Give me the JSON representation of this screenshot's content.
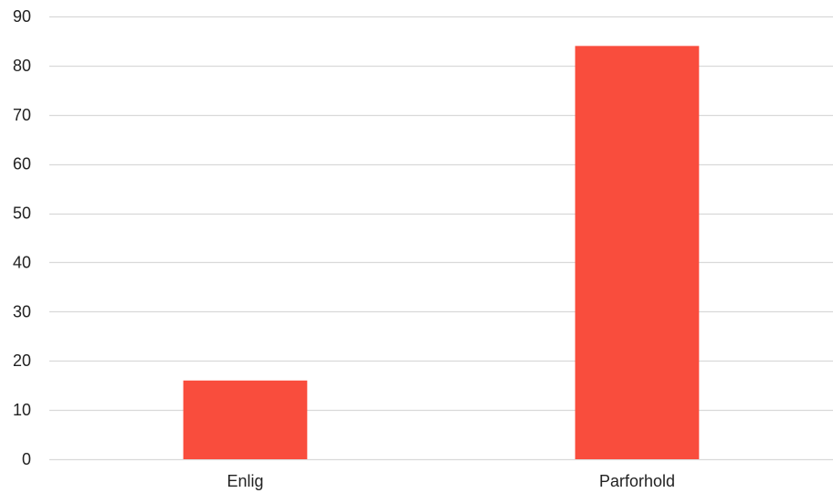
{
  "chart_data": {
    "type": "bar",
    "categories": [
      "Enlig",
      "Parforhold"
    ],
    "series": [
      {
        "values": [
          16,
          84
        ]
      }
    ],
    "title": "",
    "xlabel": "",
    "ylabel": "",
    "ylim": [
      0,
      90
    ],
    "yticks": [
      0,
      10,
      20,
      30,
      40,
      50,
      60,
      70,
      80,
      90
    ],
    "grid": true,
    "legend": "none",
    "colors": {
      "bar": "#f94d3d",
      "grid": "#d9d9d9",
      "text": "#222222"
    }
  }
}
